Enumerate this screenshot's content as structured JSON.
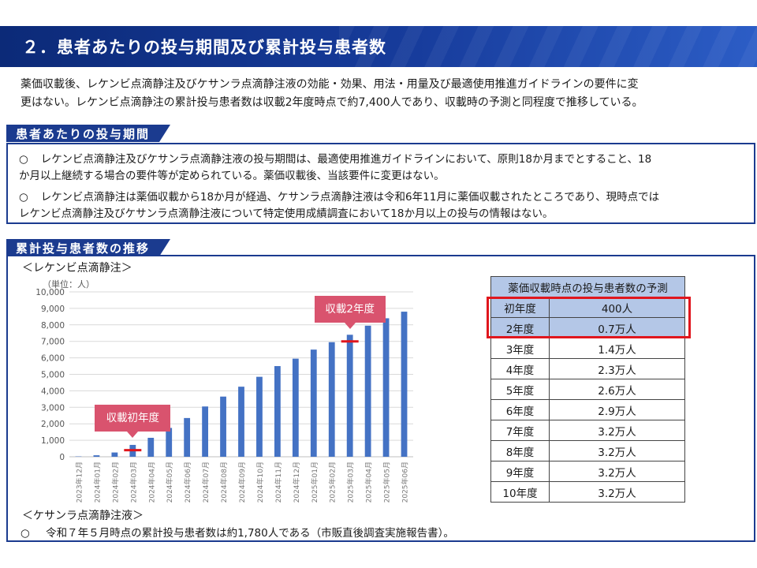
{
  "header": {
    "title": "２．患者あたりの投与期間及び累計投与患者数"
  },
  "intro": {
    "line1": "薬価収載後、レケンビ点滴静注及びケサンラ点滴静注液の効能・効果、用法・用量及び最適使用推進ガイドラインの要件に変",
    "line2": "更はない。レケンビ点滴静注の累計投与患者数は収載2年度時点で約7,400人であり、収載時の予測と同程度で推移している。"
  },
  "section1": {
    "tab": "患者あたりの投与期間",
    "bullet1": {
      "mark": "○",
      "line1": "レケンビ点滴静注及びケサンラ点滴静注液の投与期間は、最適使用推進ガイドラインにおいて、原則18か月までとすること、18",
      "line2": "か月以上継続する場合の要件等が定められている。薬価収載後、当該要件に変更はない。"
    },
    "bullet2": {
      "mark": "○",
      "line1": "レケンビ点滴静注は薬価収載から18か月が経過、ケサンラ点滴静注液は令和6年11月に薬価収載されたところであり、現時点では",
      "line2": "レケンビ点滴静注及びケサンラ点滴静注液について特定使用成績調査において18か月以上の投与の情報はない。"
    }
  },
  "section2": {
    "tab": "累計投与患者数の推移",
    "leqembi_label": "＜レケンビ点滴静注＞",
    "kisunla_label": "＜ケサンラ点滴静注液＞",
    "footnote_mark": "○",
    "footnote": "令和７年５月時点の累計投与患者数は約1,780人である（市販直後調査実施報告書）。"
  },
  "chart_data": {
    "type": "bar",
    "unit_label": "（単位：人）",
    "categories": [
      "2023年12月",
      "2024年01月",
      "2024年02月",
      "2024年03月",
      "2024年04月",
      "2024年05月",
      "2024年06月",
      "2024年07月",
      "2024年08月",
      "2024年09月",
      "2024年10月",
      "2024年11月",
      "2024年12月",
      "2025年01月",
      "2025年02月",
      "2025年03月",
      "2025年04月",
      "2025年05月",
      "2025年06月"
    ],
    "values": [
      20,
      90,
      260,
      720,
      1150,
      1750,
      2350,
      3050,
      3650,
      4250,
      4850,
      5500,
      5950,
      6500,
      6950,
      7400,
      7950,
      8400,
      8800
    ],
    "ylim": [
      0,
      10000
    ],
    "yticks": [
      0,
      1000,
      2000,
      3000,
      4000,
      5000,
      6000,
      7000,
      8000,
      9000,
      10000
    ],
    "ytick_labels": [
      "0",
      "1,000",
      "2,000",
      "3,000",
      "4,000",
      "5,000",
      "6,000",
      "7,000",
      "8,000",
      "9,000",
      "10,000"
    ],
    "bar_color": "#4472c4",
    "marker_color": "#e0161d",
    "grid": true,
    "markers": [
      {
        "label": "収載初年度",
        "category_index": 3,
        "value": 400
      },
      {
        "label": "収載2年度",
        "category_index": 15,
        "value": 7000
      }
    ]
  },
  "prediction_table": {
    "header": "薬価収載時点の投与患者数の予測",
    "highlight_color": "#e0161d",
    "rows": [
      {
        "year": "初年度",
        "value": "400人",
        "highlight": true
      },
      {
        "year": "2年度",
        "value": "0.7万人",
        "highlight": true
      },
      {
        "year": "3年度",
        "value": "1.4万人"
      },
      {
        "year": "4年度",
        "value": "2.3万人"
      },
      {
        "year": "5年度",
        "value": "2.6万人"
      },
      {
        "year": "6年度",
        "value": "2.9万人"
      },
      {
        "year": "7年度",
        "value": "3.2万人"
      },
      {
        "year": "8年度",
        "value": "3.2万人"
      },
      {
        "year": "9年度",
        "value": "3.2万人"
      },
      {
        "year": "10年度",
        "value": "3.2万人"
      }
    ]
  }
}
